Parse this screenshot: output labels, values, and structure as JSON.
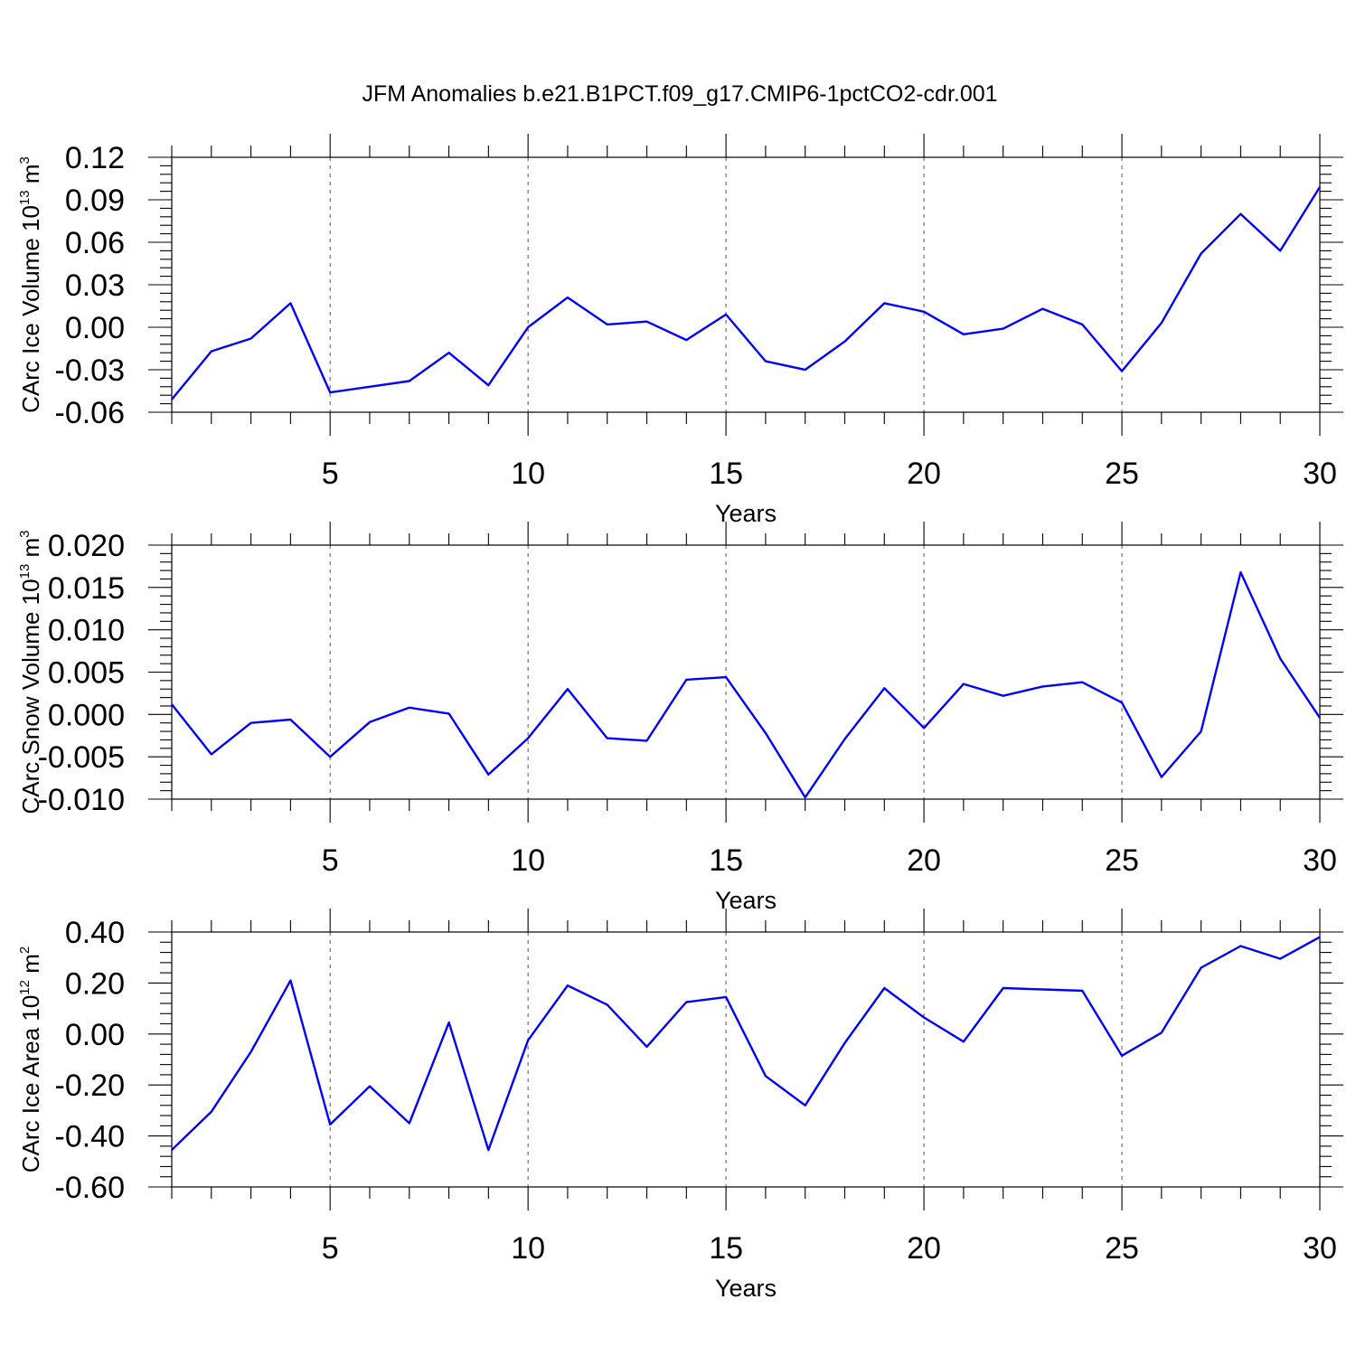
{
  "figure": {
    "title": "JFM Anomalies b.e21.B1PCT.f09_g17.CMIP6-1pctCO2-cdr.001",
    "line_color": "#0000ff"
  },
  "chart_data": [
    {
      "type": "line",
      "xlabel": "Years",
      "ylabel": {
        "main": "CArc Ice Volume 10",
        "exp": "13",
        "unit": " m",
        "unit_exp": "3"
      },
      "xlim": [
        1,
        30
      ],
      "ylim": [
        -0.06,
        0.12
      ],
      "xticks": [
        5,
        10,
        15,
        20,
        25,
        30
      ],
      "yticks": [
        "-0.06",
        "-0.03",
        "0.00",
        "0.03",
        "0.06",
        "0.09",
        "0.12"
      ],
      "ytick_values": [
        -0.06,
        -0.03,
        0.0,
        0.03,
        0.06,
        0.09,
        0.12
      ],
      "grid": "dashed vertical at x ticks",
      "x": [
        1,
        2,
        3,
        4,
        5,
        6,
        7,
        8,
        9,
        10,
        11,
        12,
        13,
        14,
        15,
        16,
        17,
        18,
        19,
        20,
        21,
        22,
        23,
        24,
        25,
        26,
        27,
        28,
        29,
        30
      ],
      "series": [
        {
          "values": [
            -0.051,
            -0.017,
            -0.008,
            0.017,
            -0.046,
            -0.042,
            -0.038,
            -0.018,
            -0.041,
            0.0,
            0.021,
            0.002,
            0.004,
            -0.009,
            0.009,
            -0.024,
            -0.03,
            -0.01,
            0.017,
            0.011,
            -0.005,
            -0.001,
            0.013,
            0.002,
            -0.031,
            0.003,
            0.052,
            0.08,
            0.054,
            0.099
          ]
        }
      ]
    },
    {
      "type": "line",
      "xlabel": "Years",
      "ylabel": {
        "main": "CArc Snow Volume 10",
        "exp": "13",
        "unit": " m",
        "unit_exp": "3"
      },
      "xlim": [
        1,
        30
      ],
      "ylim": [
        -0.01,
        0.02
      ],
      "xticks": [
        5,
        10,
        15,
        20,
        25,
        30
      ],
      "yticks": [
        "-0.010",
        "-0.005",
        "0.000",
        "0.005",
        "0.010",
        "0.015",
        "0.020"
      ],
      "ytick_values": [
        -0.01,
        -0.005,
        0.0,
        0.005,
        0.01,
        0.015,
        0.02
      ],
      "grid": "dashed vertical at x ticks",
      "x": [
        1,
        2,
        3,
        4,
        5,
        6,
        7,
        8,
        9,
        10,
        11,
        12,
        13,
        14,
        15,
        16,
        17,
        18,
        19,
        20,
        21,
        22,
        23,
        24,
        25,
        26,
        27,
        28,
        29,
        30
      ],
      "series": [
        {
          "values": [
            0.0012,
            -0.0047,
            -0.001,
            -0.0006,
            -0.005,
            -0.0009,
            0.0008,
            0.0001,
            -0.0071,
            -0.0028,
            0.003,
            -0.0028,
            -0.0031,
            0.0041,
            0.0044,
            -0.0022,
            -0.0098,
            -0.0029,
            0.0031,
            -0.0016,
            0.0036,
            0.0022,
            0.0033,
            0.0038,
            0.0014,
            -0.0074,
            -0.002,
            0.0168,
            0.0066,
            -0.0004
          ]
        }
      ]
    },
    {
      "type": "line",
      "xlabel": "Years",
      "ylabel": {
        "main": "CArc Ice Area 10",
        "exp": "12",
        "unit": " m",
        "unit_exp": "2"
      },
      "xlim": [
        1,
        30
      ],
      "ylim": [
        -0.6,
        0.4
      ],
      "xticks": [
        5,
        10,
        15,
        20,
        25,
        30
      ],
      "yticks": [
        "-0.60",
        "-0.40",
        "-0.20",
        "0.00",
        "0.20",
        "0.40"
      ],
      "ytick_values": [
        -0.6,
        -0.4,
        -0.2,
        0.0,
        0.2,
        0.4
      ],
      "grid": "dashed vertical at x ticks",
      "x": [
        1,
        2,
        3,
        4,
        5,
        6,
        7,
        8,
        9,
        10,
        11,
        12,
        13,
        14,
        15,
        16,
        17,
        18,
        19,
        20,
        21,
        22,
        23,
        24,
        25,
        26,
        27,
        28,
        29,
        30
      ],
      "series": [
        {
          "values": [
            -0.455,
            -0.305,
            -0.07,
            0.21,
            -0.355,
            -0.205,
            -0.35,
            0.045,
            -0.455,
            -0.025,
            0.19,
            0.115,
            -0.05,
            0.125,
            0.145,
            -0.165,
            -0.28,
            -0.035,
            0.18,
            0.065,
            -0.03,
            0.18,
            0.175,
            0.17,
            -0.085,
            0.005,
            0.26,
            0.345,
            0.295,
            0.38
          ]
        }
      ]
    }
  ]
}
